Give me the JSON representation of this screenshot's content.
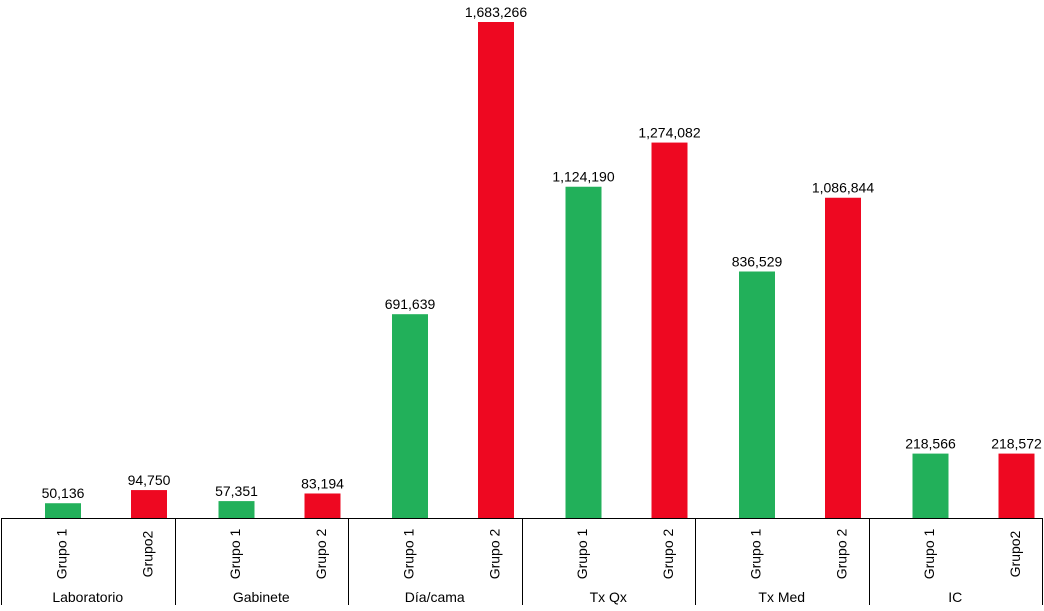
{
  "chart_data": {
    "type": "bar",
    "title": "",
    "xlabel": "",
    "ylabel": "",
    "ylim": [
      0,
      1683266
    ],
    "grid": false,
    "legend": "none",
    "number_format": "comma-thousands",
    "groups": [
      {
        "label": "Laboratorio",
        "bars": [
          {
            "label": "Grupo 1",
            "value": 50136,
            "value_label": "50,136",
            "color": "#22b05a"
          },
          {
            "label": "Grupo2",
            "value": 94750,
            "value_label": "94,750",
            "color": "#ee0821"
          }
        ]
      },
      {
        "label": "Gabinete",
        "bars": [
          {
            "label": "Grupo 1",
            "value": 57351,
            "value_label": "57,351",
            "color": "#22b05a"
          },
          {
            "label": "Grupo 2",
            "value": 83194,
            "value_label": "83,194",
            "color": "#ee0821"
          }
        ]
      },
      {
        "label": "Día/cama",
        "bars": [
          {
            "label": "Grupo 1",
            "value": 691639,
            "value_label": "691,639",
            "color": "#22b05a"
          },
          {
            "label": "Grupo 2",
            "value": 1683266,
            "value_label": "1,683,266",
            "color": "#ee0821"
          }
        ]
      },
      {
        "label": "Tx Qx",
        "bars": [
          {
            "label": "Grupo 1",
            "value": 1124190,
            "value_label": "1,124,190",
            "color": "#22b05a"
          },
          {
            "label": "Grupo 2",
            "value": 1274082,
            "value_label": "1,274,082",
            "color": "#ee0821"
          }
        ]
      },
      {
        "label": "Tx Med",
        "bars": [
          {
            "label": "Grupo 1",
            "value": 836529,
            "value_label": "836,529",
            "color": "#22b05a"
          },
          {
            "label": "Grupo 2",
            "value": 1086844,
            "value_label": "1,086,844",
            "color": "#ee0821"
          }
        ]
      },
      {
        "label": "IC",
        "bars": [
          {
            "label": "Grupo 1",
            "value": 218566,
            "value_label": "218,566",
            "color": "#22b05a"
          },
          {
            "label": "Grupo2",
            "value": 218572,
            "value_label": "218,572",
            "color": "#ee0821"
          }
        ]
      }
    ]
  }
}
